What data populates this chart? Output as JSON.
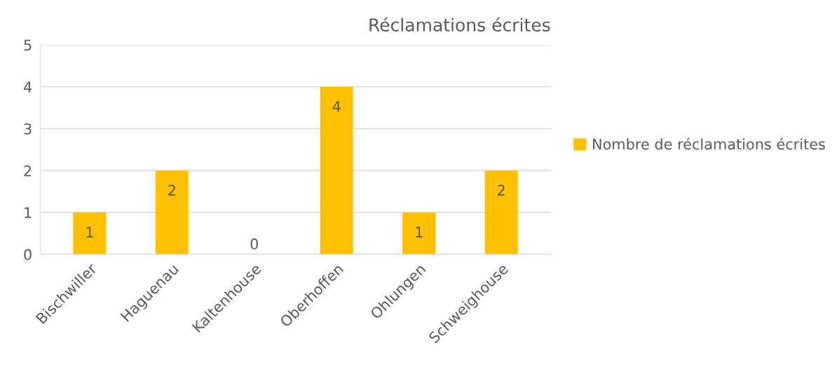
{
  "chart_data": {
    "type": "bar",
    "title": "Réclamations écrites",
    "categories": [
      "Bischwiller",
      "Haguenau",
      "Kaltenhouse",
      "Oberhoffen",
      "Ohlungen",
      "Schweighouse"
    ],
    "series": [
      {
        "name": "Nombre de réclamations écrites",
        "color": "#ffc000",
        "values": [
          1,
          2,
          0,
          4,
          1,
          2
        ]
      }
    ],
    "ylim": [
      0,
      5
    ],
    "yticks": [
      0,
      1,
      2,
      3,
      4,
      5
    ],
    "grid": "y",
    "legend": "right",
    "data_labels": true
  }
}
